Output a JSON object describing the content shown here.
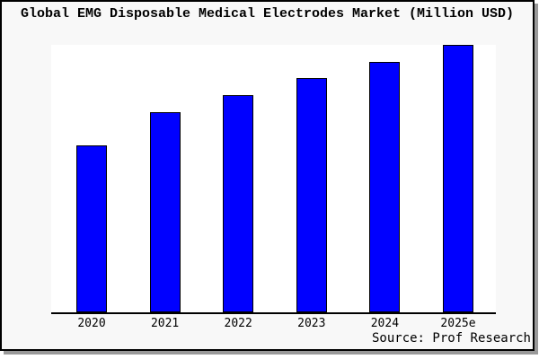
{
  "window": {
    "title": "Global EMG Disposable Medical Electrodes Market (Million USD)"
  },
  "source_note": "Source: Prof Research",
  "colors": {
    "bar_fill": "#0000FF",
    "bar_border": "#000000",
    "panel_background": "#F8F8F8",
    "plot_background": "#FFFFFF",
    "axis_line": "#000000",
    "panel_shadow": "#999999",
    "text": "#000000"
  },
  "chart_data": {
    "type": "bar",
    "title": "Global EMG Disposable Medical Electrodes Market (Million USD)",
    "categories": [
      "2020",
      "2021",
      "2022",
      "2023",
      "2024",
      "2025e"
    ],
    "values": [
      62.4,
      74.8,
      81.2,
      87.6,
      93.6,
      100
    ],
    "value_scale_note": "Y axis is unlabeled in the image; values are relative bar heights with the 2025e bar = 100.",
    "xlabel": "",
    "ylabel": "",
    "ylim": [
      0,
      100
    ],
    "grid": false,
    "legend": false,
    "bar_color": "#0000FF",
    "source": "Source: Prof Research"
  }
}
